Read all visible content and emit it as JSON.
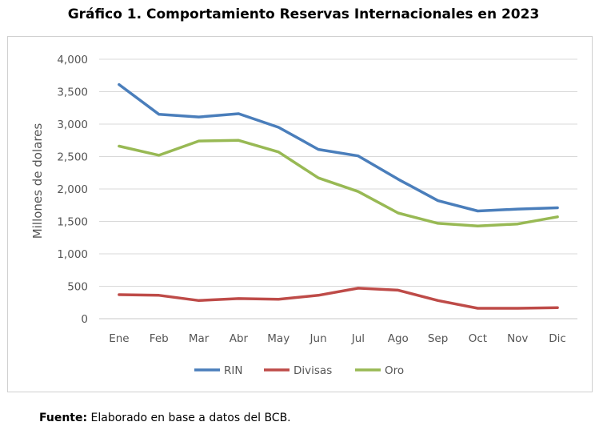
{
  "title": "Gráfico 1. Comportamiento Reservas Internacionales en 2023",
  "source": {
    "label": "Fuente:",
    "text": " Elaborado en base a datos del BCB."
  },
  "colors": {
    "RIN": "#4a7ebb",
    "Divisas": "#be4b48",
    "Oro": "#98b954"
  },
  "chart_data": {
    "type": "line",
    "ylabel": "Millones de dolares",
    "xlabel": "",
    "ylim": [
      0,
      4000
    ],
    "yticks": [
      "0",
      "500",
      "1,000",
      "1,500",
      "2,000",
      "2,500",
      "3,000",
      "3,500",
      "4,000"
    ],
    "categories": [
      "Ene",
      "Feb",
      "Mar",
      "Abr",
      "May",
      "Jun",
      "Jul",
      "Ago",
      "Sep",
      "Oct",
      "Nov",
      "Dic"
    ],
    "grid": "horizontal",
    "legend": "bottom",
    "series": [
      {
        "name": "RIN",
        "values": [
          3610,
          3150,
          3110,
          3160,
          2950,
          2610,
          2510,
          2150,
          1820,
          1660,
          1690,
          1710
        ]
      },
      {
        "name": "Divisas",
        "values": [
          370,
          360,
          280,
          310,
          300,
          360,
          470,
          440,
          280,
          160,
          160,
          170
        ]
      },
      {
        "name": "Oro",
        "values": [
          2660,
          2520,
          2740,
          2750,
          2570,
          2170,
          1960,
          1630,
          1470,
          1430,
          1460,
          1570
        ]
      }
    ]
  }
}
